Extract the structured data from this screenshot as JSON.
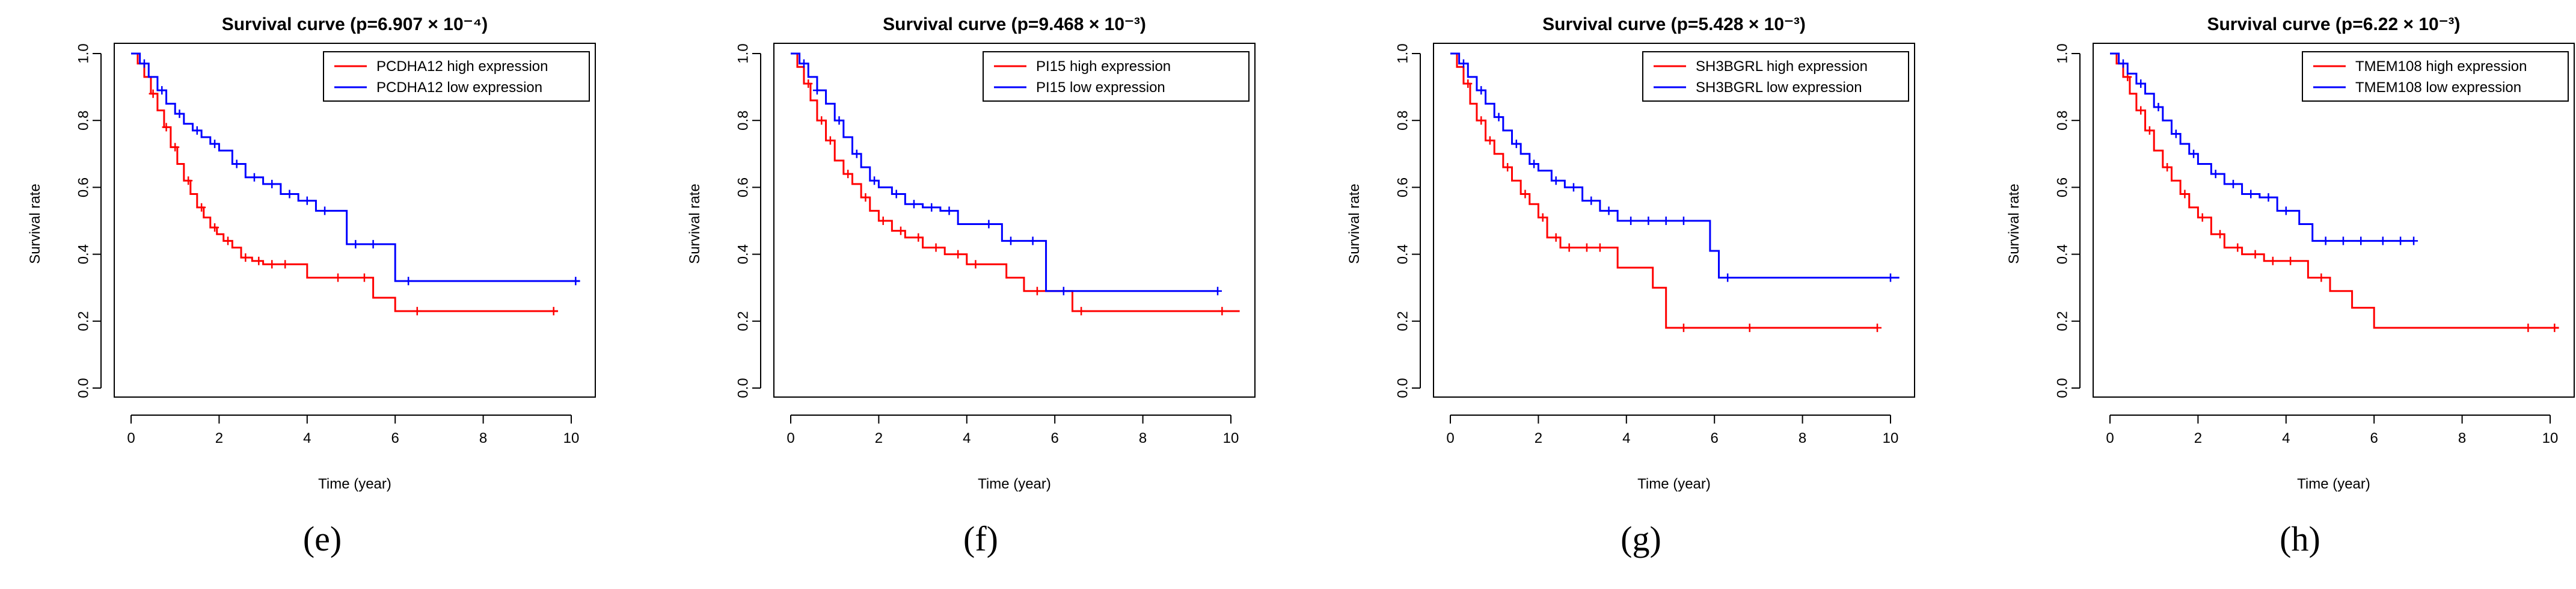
{
  "chart_data": [
    {
      "type": "line",
      "panel": "e",
      "title": "Survival curve (p=6.907 × 10⁻⁴)",
      "xlabel": "Time (year)",
      "ylabel": "Survival rate",
      "xlim": [
        0,
        10
      ],
      "ylim": [
        0,
        1
      ],
      "x_ticks": [
        "0",
        "2",
        "4",
        "6",
        "8",
        "10"
      ],
      "y_ticks": [
        "0.0",
        "0.2",
        "0.4",
        "0.6",
        "0.8",
        "1.0"
      ],
      "series": [
        {
          "name": "PCDHA12 high expression",
          "color": "#ff0000",
          "x": [
            0,
            0.15,
            0.3,
            0.45,
            0.6,
            0.75,
            0.9,
            1.05,
            1.2,
            1.35,
            1.5,
            1.65,
            1.8,
            1.95,
            2.1,
            2.3,
            2.5,
            2.75,
            3.0,
            3.3,
            3.6,
            4.0,
            4.5,
            5.0,
            5.5,
            6.0,
            7.0,
            8.0,
            9.0,
            9.7
          ],
          "y": [
            1.0,
            0.97,
            0.93,
            0.88,
            0.83,
            0.78,
            0.72,
            0.67,
            0.62,
            0.58,
            0.54,
            0.51,
            0.48,
            0.46,
            0.44,
            0.42,
            0.39,
            0.38,
            0.37,
            0.37,
            0.37,
            0.33,
            0.33,
            0.33,
            0.27,
            0.23,
            0.23,
            0.23,
            0.23,
            0.23
          ],
          "censor_x": [
            0.5,
            0.8,
            1.0,
            1.3,
            1.6,
            1.9,
            2.2,
            2.6,
            2.9,
            3.2,
            3.5,
            4.7,
            5.3,
            6.5,
            9.6
          ]
        },
        {
          "name": "PCDHA12 low expression",
          "color": "#0000ff",
          "x": [
            0,
            0.2,
            0.4,
            0.6,
            0.8,
            1.0,
            1.2,
            1.4,
            1.6,
            1.8,
            2.0,
            2.3,
            2.6,
            3.0,
            3.4,
            3.8,
            4.2,
            4.6,
            4.9,
            5.3,
            5.9,
            6.0,
            7.0,
            8.0,
            9.0,
            10.2
          ],
          "y": [
            1.0,
            0.97,
            0.93,
            0.89,
            0.85,
            0.82,
            0.79,
            0.77,
            0.75,
            0.73,
            0.71,
            0.67,
            0.63,
            0.61,
            0.58,
            0.56,
            0.53,
            0.53,
            0.43,
            0.43,
            0.43,
            0.32,
            0.32,
            0.32,
            0.32,
            0.32
          ],
          "censor_x": [
            0.3,
            0.7,
            1.1,
            1.5,
            1.9,
            2.4,
            2.8,
            3.2,
            3.6,
            4.0,
            4.4,
            5.1,
            5.5,
            6.3,
            10.1
          ]
        }
      ]
    },
    {
      "type": "line",
      "panel": "f",
      "title": "Survival curve (p=9.468 × 10⁻³)",
      "xlabel": "Time (year)",
      "ylabel": "Survival rate",
      "xlim": [
        0,
        10
      ],
      "ylim": [
        0,
        1
      ],
      "x_ticks": [
        "0",
        "2",
        "4",
        "6",
        "8",
        "10"
      ],
      "y_ticks": [
        "0.0",
        "0.2",
        "0.4",
        "0.6",
        "0.8",
        "1.0"
      ],
      "series": [
        {
          "name": "PI15 high expression",
          "color": "#ff0000",
          "x": [
            0,
            0.15,
            0.3,
            0.45,
            0.6,
            0.8,
            1.0,
            1.2,
            1.4,
            1.6,
            1.8,
            2.0,
            2.3,
            2.6,
            3.0,
            3.5,
            4.0,
            4.5,
            4.9,
            5.3,
            6.0,
            6.4,
            7.0,
            8.0,
            9.0,
            10.2
          ],
          "y": [
            1.0,
            0.96,
            0.91,
            0.86,
            0.8,
            0.74,
            0.68,
            0.64,
            0.61,
            0.57,
            0.53,
            0.5,
            0.47,
            0.45,
            0.42,
            0.4,
            0.37,
            0.37,
            0.33,
            0.29,
            0.29,
            0.23,
            0.23,
            0.23,
            0.23,
            0.23
          ],
          "censor_x": [
            0.4,
            0.7,
            0.9,
            1.3,
            1.7,
            2.1,
            2.5,
            2.9,
            3.3,
            3.8,
            4.2,
            5.6,
            6.6,
            9.8
          ]
        },
        {
          "name": "PI15 low expression",
          "color": "#0000ff",
          "x": [
            0,
            0.2,
            0.4,
            0.6,
            0.8,
            1.0,
            1.2,
            1.4,
            1.6,
            1.8,
            2.0,
            2.3,
            2.6,
            3.0,
            3.4,
            3.8,
            4.3,
            4.8,
            5.3,
            5.8,
            6.5,
            7.5,
            8.5,
            9.7
          ],
          "y": [
            1.0,
            0.97,
            0.93,
            0.89,
            0.85,
            0.8,
            0.75,
            0.7,
            0.66,
            0.62,
            0.6,
            0.58,
            0.55,
            0.54,
            0.53,
            0.49,
            0.49,
            0.44,
            0.44,
            0.29,
            0.29,
            0.29,
            0.29,
            0.29
          ],
          "censor_x": [
            0.3,
            0.6,
            1.1,
            1.5,
            1.9,
            2.4,
            2.8,
            3.2,
            3.6,
            4.5,
            5.0,
            5.5,
            6.2,
            9.7
          ]
        }
      ]
    },
    {
      "type": "line",
      "panel": "g",
      "title": "Survival curve (p=5.428 × 10⁻³)",
      "xlabel": "Time (year)",
      "ylabel": "Survival rate",
      "xlim": [
        0,
        10
      ],
      "ylim": [
        0,
        1
      ],
      "x_ticks": [
        "0",
        "2",
        "4",
        "6",
        "8",
        "10"
      ],
      "y_ticks": [
        "0.0",
        "0.2",
        "0.4",
        "0.6",
        "0.8",
        "1.0"
      ],
      "series": [
        {
          "name": "SH3BGRL high expression",
          "color": "#ff0000",
          "x": [
            0,
            0.15,
            0.3,
            0.45,
            0.6,
            0.8,
            1.0,
            1.2,
            1.4,
            1.6,
            1.8,
            2.0,
            2.2,
            2.5,
            3.0,
            3.5,
            3.8,
            4.3,
            4.6,
            4.9,
            5.5,
            6.0,
            7.0,
            8.0,
            9.0,
            9.7
          ],
          "y": [
            1.0,
            0.96,
            0.91,
            0.85,
            0.8,
            0.74,
            0.7,
            0.66,
            0.62,
            0.58,
            0.55,
            0.51,
            0.45,
            0.42,
            0.42,
            0.42,
            0.36,
            0.36,
            0.3,
            0.18,
            0.18,
            0.18,
            0.18,
            0.18,
            0.18,
            0.18
          ],
          "censor_x": [
            0.4,
            0.7,
            0.9,
            1.3,
            1.7,
            2.1,
            2.4,
            2.7,
            3.1,
            3.4,
            5.3,
            6.8,
            9.7
          ]
        },
        {
          "name": "SH3BGRL low expression",
          "color": "#0000ff",
          "x": [
            0,
            0.2,
            0.4,
            0.6,
            0.8,
            1.0,
            1.2,
            1.4,
            1.6,
            1.8,
            2.0,
            2.3,
            2.6,
            3.0,
            3.4,
            3.8,
            4.3,
            5.0,
            5.5,
            5.9,
            6.1,
            7.0,
            8.0,
            9.0,
            10.2
          ],
          "y": [
            1.0,
            0.97,
            0.93,
            0.89,
            0.85,
            0.81,
            0.77,
            0.73,
            0.7,
            0.67,
            0.65,
            0.62,
            0.6,
            0.56,
            0.53,
            0.5,
            0.5,
            0.5,
            0.5,
            0.41,
            0.33,
            0.33,
            0.33,
            0.33,
            0.33
          ],
          "censor_x": [
            0.3,
            0.7,
            1.1,
            1.5,
            1.9,
            2.4,
            2.8,
            3.2,
            3.6,
            4.1,
            4.5,
            4.9,
            5.3,
            6.3,
            10.0
          ]
        }
      ]
    },
    {
      "type": "line",
      "panel": "h",
      "title": "Survival curve (p=6.22 × 10⁻³)",
      "xlabel": "Time (year)",
      "ylabel": "Survival rate",
      "xlim": [
        0,
        10
      ],
      "ylim": [
        0,
        1
      ],
      "x_ticks": [
        "0",
        "2",
        "4",
        "6",
        "8",
        "10"
      ],
      "y_ticks": [
        "0.0",
        "0.2",
        "0.4",
        "0.6",
        "0.8",
        "1.0"
      ],
      "series": [
        {
          "name": "TMEM108 high expression",
          "color": "#ff0000",
          "x": [
            0,
            0.15,
            0.3,
            0.45,
            0.6,
            0.8,
            1.0,
            1.2,
            1.4,
            1.6,
            1.8,
            2.0,
            2.3,
            2.6,
            3.0,
            3.5,
            4.0,
            4.5,
            5.0,
            5.5,
            6.0,
            7.0,
            8.0,
            9.0,
            10.2
          ],
          "y": [
            1.0,
            0.97,
            0.93,
            0.88,
            0.83,
            0.77,
            0.71,
            0.66,
            0.62,
            0.58,
            0.54,
            0.51,
            0.46,
            0.42,
            0.4,
            0.38,
            0.38,
            0.33,
            0.29,
            0.24,
            0.18,
            0.18,
            0.18,
            0.18,
            0.18
          ],
          "censor_x": [
            0.4,
            0.7,
            0.9,
            1.3,
            1.7,
            2.1,
            2.5,
            2.9,
            3.3,
            3.7,
            4.1,
            4.8,
            9.5,
            10.1
          ]
        },
        {
          "name": "TMEM108 low expression",
          "color": "#0000ff",
          "x": [
            0,
            0.2,
            0.4,
            0.6,
            0.8,
            1.0,
            1.2,
            1.4,
            1.6,
            1.8,
            2.0,
            2.3,
            2.6,
            3.0,
            3.4,
            3.8,
            4.3,
            4.6,
            5.0,
            5.5,
            6.0,
            6.9
          ],
          "y": [
            1.0,
            0.97,
            0.94,
            0.91,
            0.88,
            0.84,
            0.8,
            0.76,
            0.73,
            0.7,
            0.67,
            0.64,
            0.61,
            0.58,
            0.57,
            0.53,
            0.49,
            0.44,
            0.44,
            0.44,
            0.44,
            0.44
          ],
          "censor_x": [
            0.3,
            0.7,
            1.1,
            1.5,
            1.9,
            2.4,
            2.8,
            3.2,
            3.6,
            4.0,
            4.9,
            5.3,
            5.7,
            6.2,
            6.6,
            6.9
          ]
        }
      ]
    }
  ],
  "panel_labels": [
    "(e)",
    "(f)",
    "(g)",
    "(h)"
  ]
}
